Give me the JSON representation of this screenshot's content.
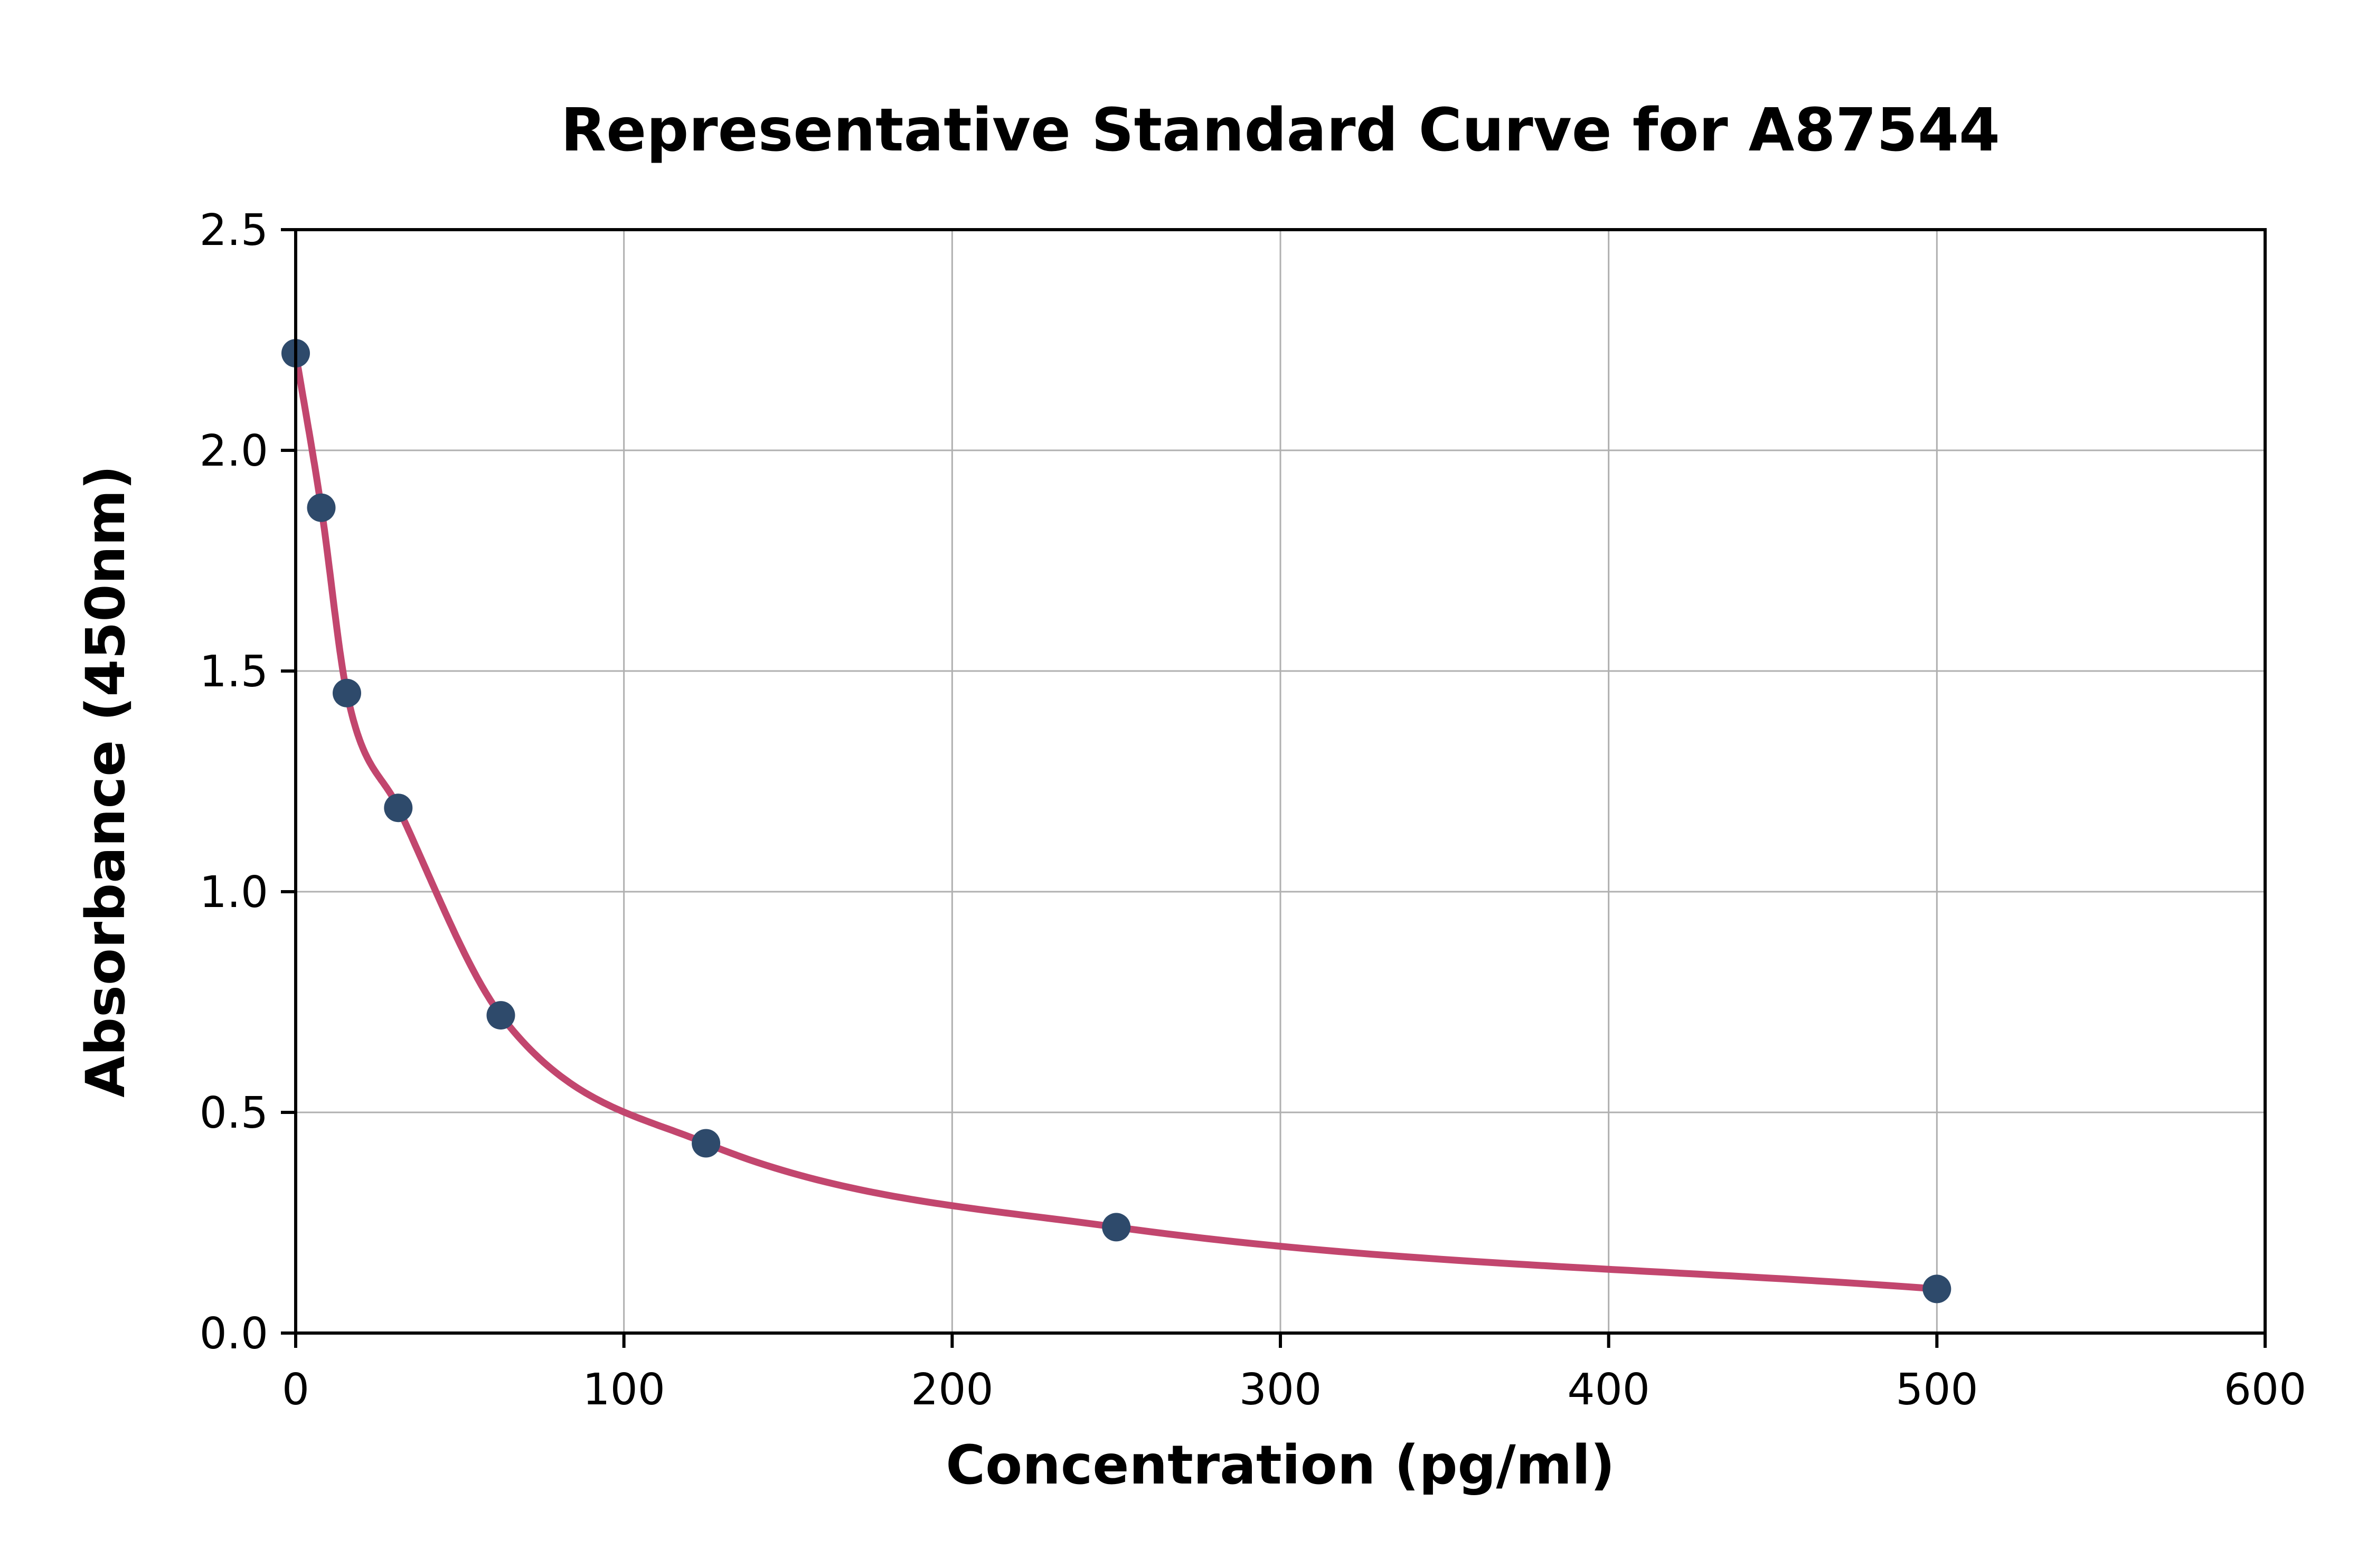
{
  "figure": {
    "background_color": "#ffffff"
  },
  "chart_data": {
    "type": "scatter",
    "title": "Representative Standard Curve for A87544",
    "xlabel": "Concentration (pg/ml)",
    "ylabel": "Absorbance (450nm)",
    "xlim": [
      0,
      600
    ],
    "ylim": [
      0,
      2.5
    ],
    "xtick_values": [
      0,
      100,
      200,
      300,
      400,
      500,
      600
    ],
    "xtick_labels": [
      "0",
      "100",
      "200",
      "300",
      "400",
      "500",
      "600"
    ],
    "ytick_values": [
      0,
      0.5,
      1.0,
      1.5,
      2.0,
      2.5
    ],
    "ytick_labels": [
      "0.0",
      "0.5",
      "1.0",
      "1.5",
      "2.0",
      "2.5"
    ],
    "grid": true,
    "grid_color": "#b0b0b0",
    "spine_color": "#000000",
    "legend_position": "none",
    "series": [
      {
        "name": "standard-points",
        "type": "scatter",
        "color": "#2e4a6b",
        "points": [
          {
            "x": 0,
            "y": 2.22
          },
          {
            "x": 7.8,
            "y": 1.87
          },
          {
            "x": 15.6,
            "y": 1.45
          },
          {
            "x": 31.25,
            "y": 1.19
          },
          {
            "x": 62.5,
            "y": 0.72
          },
          {
            "x": 125,
            "y": 0.43
          },
          {
            "x": 250,
            "y": 0.24
          },
          {
            "x": 500,
            "y": 0.1
          }
        ]
      },
      {
        "name": "fitted-curve",
        "type": "line",
        "color": "#c2466e"
      }
    ]
  }
}
